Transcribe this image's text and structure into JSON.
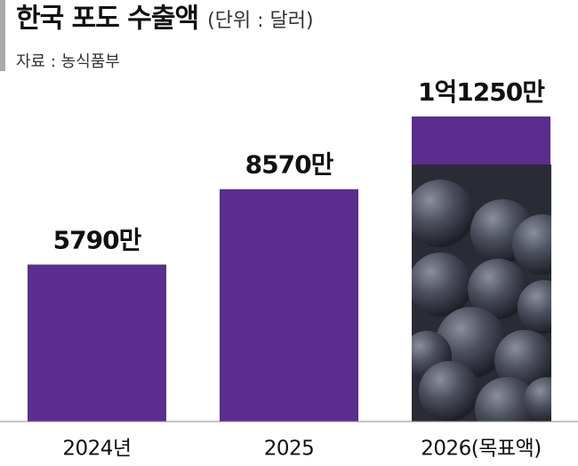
{
  "chart_data": {
    "type": "bar",
    "title": "한국 포도 수출액",
    "subtitle": "(단위 : 달러)",
    "source": "자료 : 농식품부",
    "categories": [
      "2024년",
      "2025",
      "2026(목표액)"
    ],
    "values": [
      5790,
      8570,
      11250
    ],
    "value_labels": [
      "5790만",
      "8570만",
      "1억1250만"
    ],
    "color": "#5b2d8e"
  }
}
